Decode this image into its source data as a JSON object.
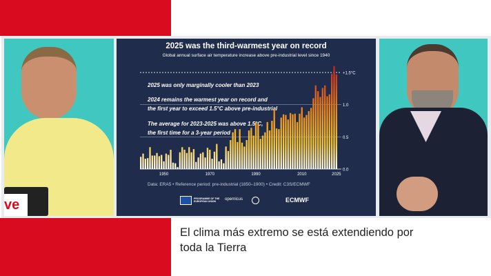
{
  "caption": {
    "line1": "El clima más extremo se está extendiendo por",
    "line2": "toda la Tierra"
  },
  "logo_text": "ve",
  "colors": {
    "brand_red": "#d90c1f",
    "chart_bg": "#1f2c4c",
    "studio_teal": "#3fc7c0"
  },
  "chart": {
    "annotations": [
      "2025 was only marginally cooler than 2023",
      "2024 remains the warmest year on record and",
      "the first year to exceed 1.5°C above pre-industrial",
      "The average for 2023-2025 was above 1.5°C,",
      "the first time for a 3-year period"
    ],
    "footer": "Data: ERA5 • Reference period: pre-industrial (1850–1900) • Credit: C3S/ECMWF",
    "logos": [
      "PROGRAMME OF THE EUROPEAN UNION",
      "opernicus",
      "ECMWF"
    ]
  },
  "chart_data": {
    "type": "bar",
    "title": "2025 was the third-warmest year on record",
    "subtitle": "Global annual surface air temperature increase above pre-industrial level since 1940",
    "x_start": 1940,
    "xticks": [
      "1950",
      "1970",
      "1990",
      "2010",
      "2025"
    ],
    "yticks": [
      "0.0",
      "0.5",
      "1.0",
      "+1.5°C"
    ],
    "ylim": [
      0,
      1.6
    ],
    "reference_line": 1.5,
    "grid": true,
    "values": [
      0.19,
      0.24,
      0.16,
      0.17,
      0.34,
      0.21,
      0.21,
      0.25,
      0.2,
      0.22,
      0.12,
      0.24,
      0.22,
      0.3,
      0.1,
      0.09,
      0.03,
      0.26,
      0.34,
      0.3,
      0.25,
      0.34,
      0.26,
      0.31,
      0.11,
      0.18,
      0.24,
      0.26,
      0.18,
      0.33,
      0.3,
      0.16,
      0.27,
      0.39,
      0.12,
      0.15,
      0.09,
      0.35,
      0.28,
      0.45,
      0.57,
      0.62,
      0.42,
      0.62,
      0.41,
      0.35,
      0.45,
      0.6,
      0.64,
      0.52,
      0.73,
      0.7,
      0.47,
      0.52,
      0.57,
      0.73,
      0.6,
      0.75,
      0.93,
      0.63,
      0.62,
      0.8,
      0.85,
      0.84,
      0.77,
      0.87,
      0.85,
      0.86,
      0.73,
      0.86,
      0.96,
      0.8,
      0.84,
      0.9,
      0.95,
      1.1,
      1.3,
      1.21,
      1.12,
      1.26,
      1.3,
      1.13,
      1.16,
      1.48,
      1.6,
      1.47
    ]
  }
}
